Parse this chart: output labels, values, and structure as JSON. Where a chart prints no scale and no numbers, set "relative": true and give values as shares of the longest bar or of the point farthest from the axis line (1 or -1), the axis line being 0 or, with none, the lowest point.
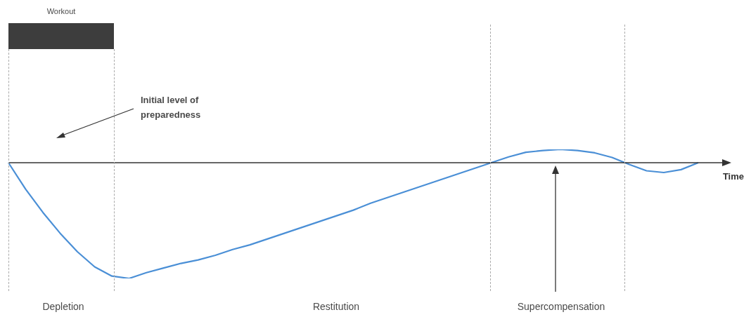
{
  "chart_data": {
    "type": "line",
    "relative": true,
    "xlabel": "Time",
    "legend": false,
    "categories": [
      null,
      null,
      null,
      null,
      null,
      null,
      null,
      null,
      null,
      null,
      null,
      null,
      null,
      null,
      null,
      null,
      null,
      null,
      null,
      null,
      null,
      null,
      null,
      null,
      null,
      null,
      null,
      null,
      null,
      null,
      null,
      null,
      null,
      null,
      null,
      null,
      null,
      null,
      null,
      null,
      null
    ],
    "series": [
      {
        "color": "#4a8fd6",
        "values": [
          0,
          -0.23,
          -0.43,
          -0.61,
          -0.77,
          -0.9,
          -0.98,
          -1,
          -0.95,
          -0.91,
          -0.87,
          -0.84,
          -0.8,
          -0.75,
          -0.71,
          -0.66,
          -0.61,
          -0.56,
          -0.51,
          -0.46,
          -0.41,
          -0.35,
          -0.3,
          -0.25,
          -0.2,
          -0.15,
          -0.1,
          -0.05,
          0,
          0.05,
          0.09,
          0.105,
          0.115,
          0.105,
          0.085,
          0.045,
          -0.015,
          -0.07,
          -0.085,
          -0.06,
          0
        ]
      }
    ],
    "annotations": [
      "Workout",
      "Initial level of preparedness",
      "Depletion",
      "Restitution",
      "Supercompensation"
    ]
  }
}
